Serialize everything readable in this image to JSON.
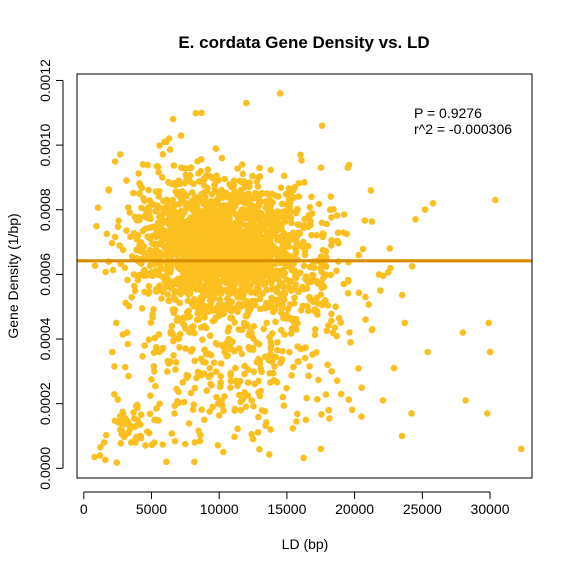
{
  "chart_data": {
    "type": "scatter",
    "title": "E. cordata Gene Density vs. LD",
    "xlabel": "LD (bp)",
    "ylabel": "Gene Density (1/bp)",
    "xlim": [
      -500,
      33100
    ],
    "ylim": [
      -3e-05,
      0.00122
    ],
    "x_ticks": [
      0,
      5000,
      10000,
      15000,
      20000,
      25000,
      30000
    ],
    "x_tick_labels": [
      "0",
      "5000",
      "10000",
      "15000",
      "20000",
      "25000",
      "30000"
    ],
    "y_ticks": [
      0.0,
      0.0002,
      0.0004,
      0.0006,
      0.0008,
      0.001,
      0.0012
    ],
    "y_tick_labels": [
      "0.0000",
      "0.0002",
      "0.0004",
      "0.0006",
      "0.0008",
      "0.0010",
      "0.0012"
    ],
    "annotations": {
      "p_value": "P =  0.9276",
      "r_squared": "r^2 = -0.000306"
    },
    "point_color": "#FBC020",
    "line_color": "#D98E00",
    "regression_line": {
      "intercept": 0.000642,
      "slope": 0.0
    },
    "points": [
      [
        800,
        3.5e-05
      ],
      [
        1500,
        8e-05
      ],
      [
        1200,
        4e-05
      ],
      [
        2100,
        0.00036
      ],
      [
        2400,
        0.00045
      ],
      [
        2700,
        0.00012
      ],
      [
        3000,
        0.00015
      ],
      [
        3300,
        0.00011
      ],
      [
        3500,
        8e-05
      ],
      [
        3800,
        0.00013
      ],
      [
        4200,
        0.0001
      ],
      [
        3200,
        0.00042
      ],
      [
        3700,
        0.0006
      ],
      [
        4100,
        0.00085
      ],
      [
        4500,
        0.00038
      ],
      [
        4800,
        0.00065
      ],
      [
        5200,
        0.00072
      ],
      [
        5500,
        0.00056
      ],
      [
        5800,
        0.0009
      ],
      [
        6100,
        0.00101
      ],
      [
        6300,
        0.00102
      ],
      [
        6600,
        0.00108
      ],
      [
        6900,
        0.00079
      ],
      [
        7200,
        0.00093
      ],
      [
        7500,
        0.00071
      ],
      [
        7800,
        0.0006
      ],
      [
        8100,
        0.00088
      ],
      [
        8400,
        0.00095
      ],
      [
        8700,
        0.0011
      ],
      [
        9000,
        0.00076
      ],
      [
        9300,
        0.00064
      ],
      [
        9600,
        0.00058
      ],
      [
        9900,
        0.00083
      ],
      [
        10200,
        0.00096
      ],
      [
        10500,
        0.00069
      ],
      [
        10800,
        0.00072
      ],
      [
        11100,
        0.00089
      ],
      [
        11400,
        0.00066
      ],
      [
        11700,
        0.00094
      ],
      [
        12000,
        0.00113
      ],
      [
        12300,
        0.00078
      ],
      [
        12600,
        0.00062
      ],
      [
        12900,
        0.0009
      ],
      [
        13200,
        0.00071
      ],
      [
        13500,
        0.00085
      ],
      [
        13800,
        0.00059
      ],
      [
        14100,
        0.00076
      ],
      [
        14500,
        0.00116
      ],
      [
        14800,
        0.00068
      ],
      [
        15200,
        0.00081
      ],
      [
        15600,
        0.00087
      ],
      [
        16000,
        0.00097
      ],
      [
        16500,
        0.00075
      ],
      [
        17000,
        0.00064
      ],
      [
        17600,
        0.00106
      ],
      [
        18200,
        0.0008
      ],
      [
        18800,
        0.00064
      ],
      [
        19500,
        0.00093
      ],
      [
        20300,
        0.00066
      ],
      [
        21200,
        0.00086
      ],
      [
        21800,
        0.0006
      ],
      [
        22600,
        0.00068
      ],
      [
        23700,
        0.00045
      ],
      [
        24500,
        0.00077
      ],
      [
        25200,
        0.0008
      ],
      [
        25800,
        0.00082
      ],
      [
        30400,
        0.00083
      ],
      [
        28000,
        0.00042
      ],
      [
        29900,
        0.00045
      ],
      [
        30000,
        0.00036
      ],
      [
        28200,
        0.00021
      ],
      [
        29800,
        0.00017
      ],
      [
        32300,
        6e-05
      ],
      [
        25400,
        0.00036
      ],
      [
        23500,
        0.0001
      ],
      [
        5200,
        0.0003
      ],
      [
        5600,
        0.0002
      ],
      [
        6100,
        2e-05
      ],
      [
        6400,
        0.00033
      ],
      [
        6700,
        0.00017
      ],
      [
        7300,
        0.00045
      ],
      [
        7600,
        0.00028
      ],
      [
        8200,
        8e-05
      ],
      [
        8500,
        0.00046
      ],
      [
        8900,
        0.00015
      ],
      [
        9400,
        0.00035
      ],
      [
        9800,
        0.00022
      ],
      [
        10300,
        5e-05
      ],
      [
        10700,
        0.0004
      ],
      [
        11200,
        0.00031
      ],
      [
        11600,
        0.00018
      ],
      [
        12100,
        0.00044
      ],
      [
        12500,
        9e-05
      ],
      [
        12900,
        0.00027
      ],
      [
        13400,
        0.0005
      ],
      [
        13800,
        0.00012
      ],
      [
        14300,
        0.00039
      ],
      [
        14700,
        0.00022
      ],
      [
        15300,
        0.00046
      ],
      [
        15800,
        0.00033
      ],
      [
        16400,
        0.00015
      ],
      [
        17100,
        0.00043
      ],
      [
        17500,
        6e-05
      ],
      [
        18300,
        0.0003
      ],
      [
        19000,
        0.00023
      ],
      [
        19700,
        0.00039
      ],
      [
        20500,
        0.00016
      ],
      [
        21300,
        0.00043
      ],
      [
        22100,
        0.00021
      ],
      [
        22900,
        0.00031
      ],
      [
        24200,
        0.00017
      ],
      [
        20800,
        0.00053
      ],
      [
        19200,
        0.00057
      ],
      [
        18600,
        0.0005
      ],
      [
        21900,
        0.00055
      ]
    ],
    "clusters": [
      {
        "cx": 10000,
        "cy": 0.00068,
        "sx": 2600,
        "sy": 8.5e-05,
        "n": 1300
      },
      {
        "cx": 8500,
        "cy": 0.00072,
        "sx": 3300,
        "sy": 0.00012,
        "n": 450
      },
      {
        "cx": 12500,
        "cy": 0.00066,
        "sx": 3600,
        "sy": 0.00014,
        "n": 320
      },
      {
        "cx": 10500,
        "cy": 0.0003,
        "sx": 4500,
        "sy": 0.00013,
        "n": 260
      },
      {
        "cx": 15500,
        "cy": 0.00056,
        "sx": 3200,
        "sy": 0.00014,
        "n": 120
      },
      {
        "cx": 3800,
        "cy": 0.00012,
        "sx": 900,
        "sy": 4e-05,
        "n": 35
      }
    ]
  }
}
